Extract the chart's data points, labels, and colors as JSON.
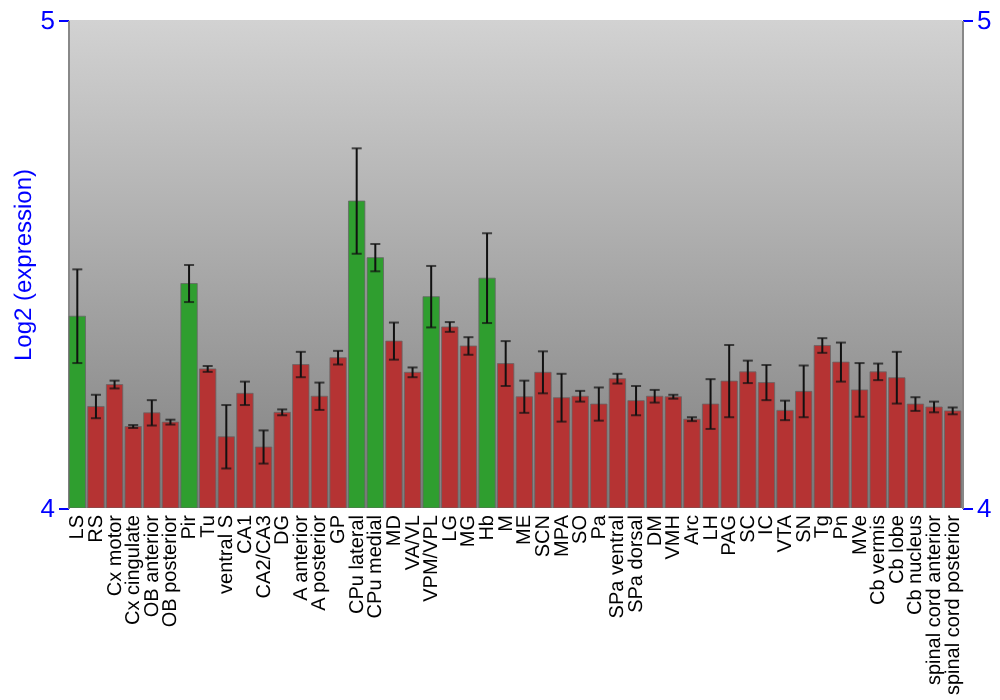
{
  "chart_data": {
    "type": "bar",
    "ylabel": "Log2 (expression)",
    "categories": [
      "LS",
      "RS",
      "Cx motor",
      "Cx cingulate",
      "OB anterior",
      "OB posterior",
      "Pir",
      "Tu",
      "ventral S",
      "CA1",
      "CA2/CA3",
      "DG",
      "A anterior",
      "A posterior",
      "GP",
      "CPu lateral",
      "CPu medial",
      "MD",
      "VA/VL",
      "VPM/VPL",
      "LG",
      "MG",
      "Hb",
      "M",
      "ME",
      "SCN",
      "MPA",
      "SO",
      "Pa",
      "SPa ventral",
      "SPa dorsal",
      "DM",
      "VMH",
      "Arc",
      "LH",
      "PAG",
      "SC",
      "IC",
      "VTA",
      "SN",
      "Tg",
      "Pn",
      "MVe",
      "Cb vermis",
      "Cb lobe",
      "Cb nucleus",
      "spinal cord anterior",
      "spinal cord posterior"
    ],
    "values": [
      4.393,
      4.208,
      4.253,
      4.167,
      4.195,
      4.176,
      4.46,
      4.285,
      4.146,
      4.235,
      4.125,
      4.196,
      4.294,
      4.229,
      4.308,
      4.629,
      4.513,
      4.342,
      4.278,
      4.433,
      4.371,
      4.332,
      4.471,
      4.296,
      4.228,
      4.278,
      4.226,
      4.229,
      4.213,
      4.265,
      4.22,
      4.229,
      4.228,
      4.182,
      4.213,
      4.26,
      4.279,
      4.257,
      4.2,
      4.239,
      4.333,
      4.299,
      4.242,
      4.279,
      4.267,
      4.213,
      4.207,
      4.199
    ],
    "errors": [
      0.096,
      0.024,
      0.008,
      0.003,
      0.026,
      0.005,
      0.038,
      0.006,
      0.065,
      0.024,
      0.034,
      0.006,
      0.026,
      0.028,
      0.014,
      0.108,
      0.028,
      0.038,
      0.01,
      0.063,
      0.01,
      0.018,
      0.092,
      0.046,
      0.033,
      0.043,
      0.049,
      0.011,
      0.034,
      0.01,
      0.03,
      0.013,
      0.004,
      0.004,
      0.051,
      0.074,
      0.023,
      0.036,
      0.02,
      0.053,
      0.015,
      0.04,
      0.055,
      0.017,
      0.053,
      0.014,
      0.011,
      0.007
    ],
    "colors": [
      "#2f9e2f",
      "#b53333",
      "#b53333",
      "#b53333",
      "#b53333",
      "#b53333",
      "#2f9e2f",
      "#b53333",
      "#b53333",
      "#b53333",
      "#b53333",
      "#b53333",
      "#b53333",
      "#b53333",
      "#b53333",
      "#2f9e2f",
      "#2f9e2f",
      "#b53333",
      "#b53333",
      "#2f9e2f",
      "#b53333",
      "#b53333",
      "#2f9e2f",
      "#b53333",
      "#b53333",
      "#b53333",
      "#b53333",
      "#b53333",
      "#b53333",
      "#b53333",
      "#b53333",
      "#b53333",
      "#b53333",
      "#b53333",
      "#b53333",
      "#b53333",
      "#b53333",
      "#b53333",
      "#b53333",
      "#b53333",
      "#b53333",
      "#b53333",
      "#b53333",
      "#b53333",
      "#b53333",
      "#b53333",
      "#b53333",
      "#b53333"
    ],
    "ylim": [
      4,
      5
    ],
    "yticks": [
      4,
      5
    ],
    "y2lim": [
      4,
      5
    ],
    "y2ticks": [
      4,
      5
    ],
    "grid": false
  }
}
